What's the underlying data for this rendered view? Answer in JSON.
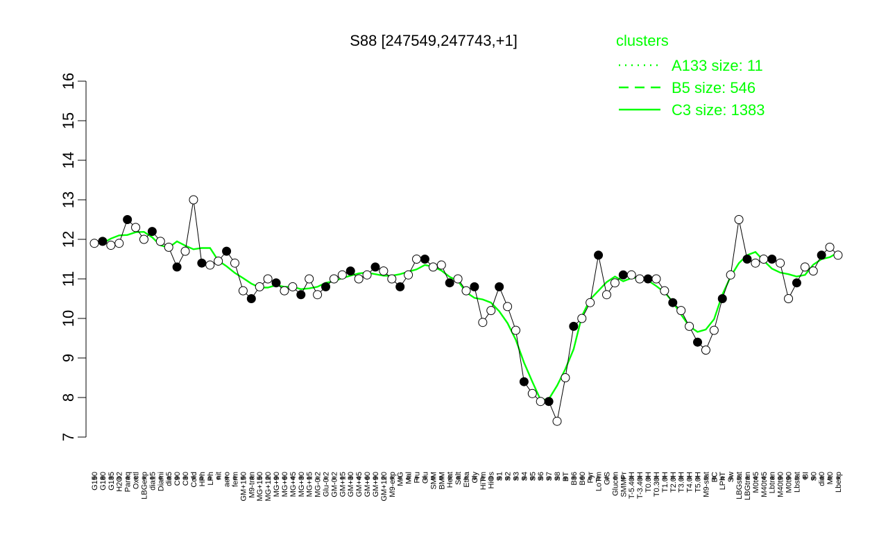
{
  "chart_data": {
    "type": "line",
    "title": "S88 [247549,247743,+1]",
    "xlabel": "",
    "ylabel": "",
    "ylim": [
      7,
      16
    ],
    "yticks": [
      7,
      8,
      9,
      10,
      11,
      12,
      13,
      14,
      15,
      16
    ],
    "grid": false,
    "legend": {
      "title": "clusters",
      "placement": "top-right",
      "entries": [
        {
          "label": "A133 size: 11",
          "style": "dotted"
        },
        {
          "label": "B5 size: 546",
          "style": "dashed"
        },
        {
          "label": "C3 size: 1383",
          "style": "solid"
        }
      ]
    },
    "colors": {
      "cluster_line": "#00ff00",
      "axis": "#000000"
    },
    "x_labels": [
      "G150",
      "G180",
      "G135",
      "H2O2",
      "Paraq",
      "Oxctl",
      "LBGexp",
      "dia15",
      "Diami",
      "dia5",
      "C90",
      "C30",
      "Cold",
      "HPh",
      "LPh",
      "nit",
      "aero",
      "ferm",
      "GM+150",
      "M9-tran",
      "MG+150",
      "MG+120",
      "MG+90",
      "MG+60",
      "MG+45",
      "MG+30",
      "MG+15",
      "MG-0.2",
      "Glu-0.2",
      "GM-0.2",
      "GM+15",
      "GM+30",
      "GM+45",
      "GM+60",
      "GM+90",
      "GM+120",
      "M9-exp",
      "M/G",
      "Mal",
      "Fru",
      "Glu",
      "SMM",
      "BMM",
      "Heat",
      "Salt",
      "Etha",
      "Gly",
      "HiTm",
      "HiOs",
      "S1",
      "S2",
      "S3",
      "S4",
      "S5",
      "S6",
      "S7",
      "S8",
      "BT",
      "B36",
      "B60",
      "Pyr",
      "LoTm",
      "G/S",
      "Glucon",
      "SMMPr",
      "T-5.40H",
      "T-3.40H",
      "T0.0H",
      "T0.30H",
      "T1.0H",
      "T2.0H",
      "T3.0H",
      "T4.0H",
      "T5.0H",
      "M9-stat",
      "BC",
      "LPhT",
      "Sw",
      "LBGstat",
      "LBGtran",
      "M0t45",
      "M40t45",
      "Lbtran",
      "M40t90",
      "M0t90",
      "Lbstat",
      "BI",
      "S0",
      "dia0",
      "Mt0",
      "Lbexp"
    ],
    "series": [
      {
        "values": [
          11.9,
          11.95,
          11.85,
          11.9,
          12.5,
          12.3,
          12.0,
          12.2,
          11.95,
          11.8,
          11.3,
          11.7,
          13.0,
          11.4,
          11.35,
          11.45,
          11.7,
          11.4,
          10.7,
          10.5,
          10.8,
          11.0,
          10.9,
          10.7,
          10.8,
          10.6,
          11.0,
          10.6,
          10.8,
          11.0,
          11.1,
          11.2,
          11.0,
          11.1,
          11.3,
          11.2,
          11.0,
          10.8,
          11.1,
          11.5,
          11.5,
          11.3,
          11.35,
          10.9,
          11.0,
          10.7,
          10.8,
          9.9,
          10.2,
          10.8,
          10.3,
          9.7,
          8.4,
          8.1,
          7.9,
          7.9,
          7.4,
          8.5,
          9.8,
          10.0,
          10.4,
          11.6,
          10.6,
          10.9,
          11.1,
          11.1,
          11.0,
          11.0,
          11.0,
          10.7,
          10.4,
          10.2,
          9.8,
          9.4,
          9.2,
          9.7,
          10.5,
          11.1,
          12.5,
          11.5,
          11.4,
          11.5,
          11.5,
          11.4,
          10.5,
          10.9,
          11.3,
          11.2,
          11.6,
          11.8,
          11.6
        ]
      }
    ]
  }
}
